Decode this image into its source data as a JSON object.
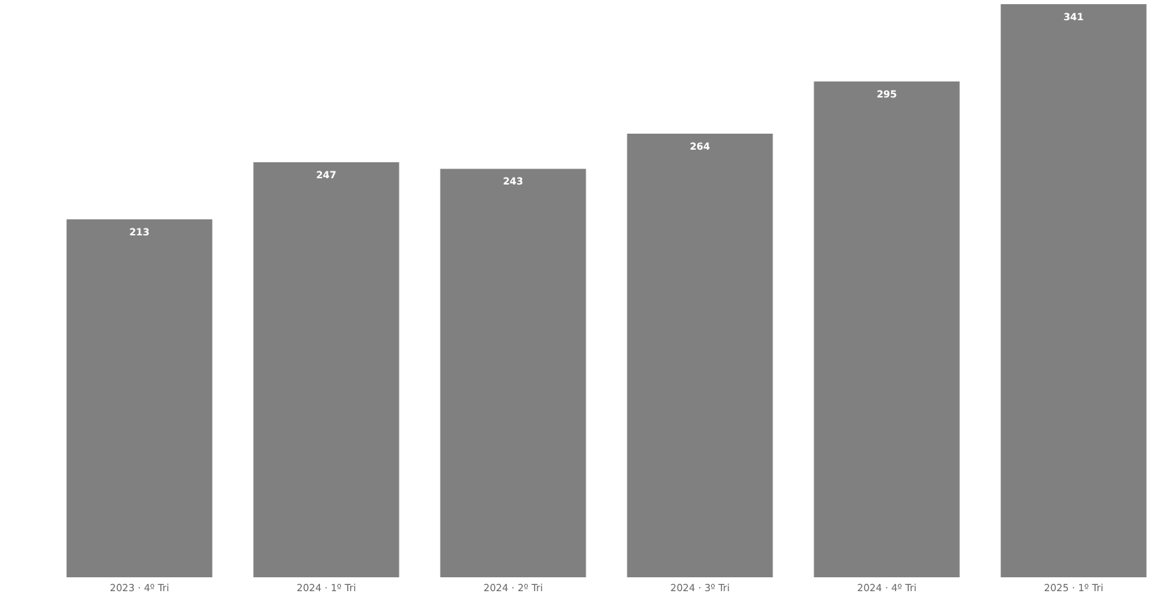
{
  "chart_data": {
    "type": "bar",
    "categories": [
      "2023 · 4º Tri",
      "2024 · 1º Tri",
      "2024 · 2º Tri",
      "2024 · 3º Tri",
      "2024 · 4º Tri",
      "2025 · 1º Tri"
    ],
    "values": [
      213,
      247,
      243,
      264,
      295,
      341
    ],
    "color": "#808080",
    "data_labels": true,
    "grid": false,
    "legend": false
  }
}
